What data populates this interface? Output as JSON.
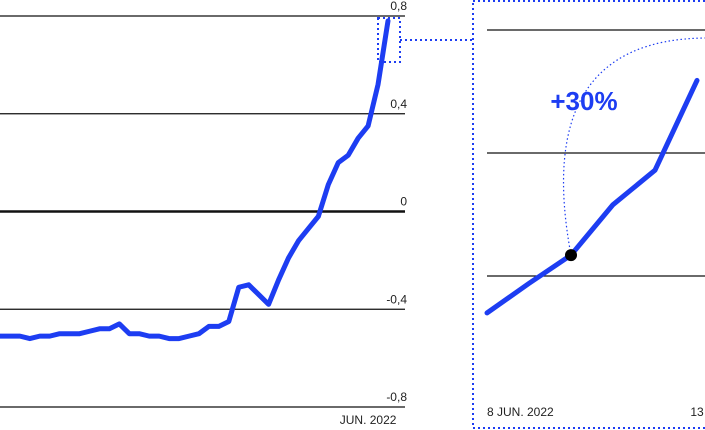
{
  "chart_data": [
    {
      "type": "line",
      "color": "#1d3df2",
      "categories": [
        null,
        null,
        null,
        null,
        null,
        null,
        null,
        null,
        null,
        null,
        null,
        null,
        null,
        null,
        null,
        null,
        null,
        null,
        null,
        null,
        null,
        null,
        null,
        null,
        null,
        null,
        null,
        null,
        null,
        null,
        null,
        null,
        null,
        null,
        null,
        null,
        null,
        "JUN. 2022",
        null,
        null
      ],
      "values": [
        -0.51,
        -0.51,
        -0.51,
        -0.52,
        -0.51,
        -0.51,
        -0.5,
        -0.5,
        -0.5,
        -0.49,
        -0.48,
        -0.48,
        -0.46,
        -0.5,
        -0.5,
        -0.51,
        -0.51,
        -0.52,
        -0.52,
        -0.51,
        -0.5,
        -0.47,
        -0.47,
        -0.45,
        -0.31,
        -0.3,
        -0.34,
        -0.38,
        -0.28,
        -0.19,
        -0.12,
        -0.07,
        -0.02,
        0.11,
        0.2,
        0.23,
        0.3,
        0.35,
        0.52,
        0.78
      ],
      "ylim": [
        -0.8,
        0.8
      ],
      "yticks": [
        {
          "value": 0.8,
          "label": "0,8"
        },
        {
          "value": 0.4,
          "label": "0,4"
        },
        0,
        {
          "value": -0.4,
          "label": "-0,4"
        },
        {
          "value": -0.8,
          "label": "-0,8"
        }
      ],
      "grid": true
    },
    {
      "type": "line",
      "color": "#1d3df2",
      "categories": [
        "8 JUN. 2022",
        null,
        null,
        null,
        null,
        "13"
      ],
      "values": [
        0.57,
        0.594,
        0.617,
        0.658,
        0.686,
        0.759
      ],
      "ylim": [
        0.5,
        0.8
      ],
      "yticks": [
        0.6,
        0.7,
        0.8
      ],
      "grid": true,
      "annotation": "+30%"
    }
  ]
}
